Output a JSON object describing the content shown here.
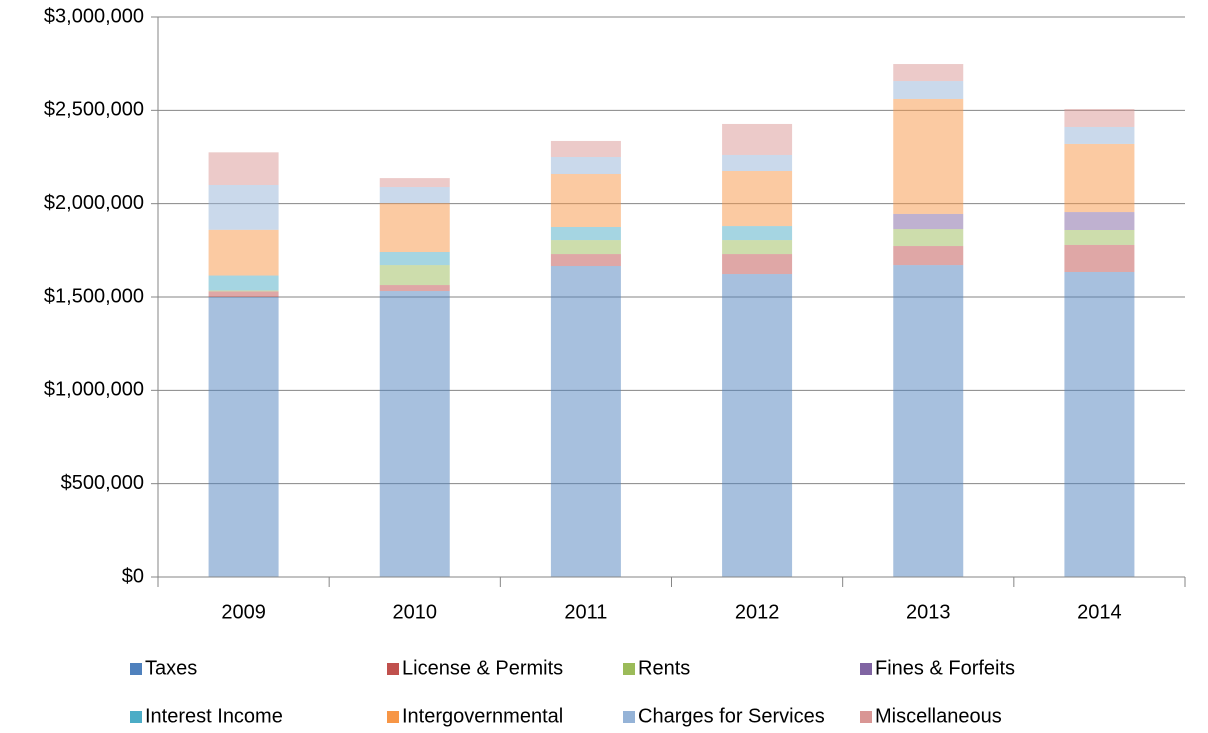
{
  "chart_data": {
    "type": "stacked_bar",
    "categories": [
      "2009",
      "2010",
      "2011",
      "2012",
      "2013",
      "2014"
    ],
    "series": [
      {
        "name": "Taxes",
        "color": "#4f81bd",
        "values": [
          1500000,
          1532000,
          1666000,
          1623000,
          1671000,
          1634000
        ]
      },
      {
        "name": "License & Permits",
        "color": "#c0504d",
        "values": [
          30000,
          32000,
          64000,
          107000,
          102000,
          145000
        ]
      },
      {
        "name": "Rents",
        "color": "#9bbb59",
        "values": [
          5000,
          107000,
          75000,
          75000,
          91000,
          80000
        ]
      },
      {
        "name": "Fines & Forfeits",
        "color": "#8064a2",
        "values": [
          0,
          0,
          0,
          0,
          81000,
          96000
        ]
      },
      {
        "name": "Interest Income",
        "color": "#4bacc6",
        "values": [
          80000,
          70000,
          70000,
          75000,
          0,
          0
        ]
      },
      {
        "name": "Intergovernmental",
        "color": "#f79646",
        "values": [
          245000,
          262000,
          284000,
          295000,
          616000,
          365000
        ]
      },
      {
        "name": "Charges for Services",
        "color": "#95b3d7",
        "values": [
          240000,
          86000,
          91000,
          86000,
          96000,
          91000
        ]
      },
      {
        "name": "Miscellaneous",
        "color": "#d99694",
        "values": [
          175000,
          48000,
          86000,
          166000,
          91000,
          96000
        ]
      }
    ],
    "ylim": [
      0,
      3000000
    ],
    "yticks": [
      {
        "value": 0,
        "label": "$0"
      },
      {
        "value": 500000,
        "label": "$500,000"
      },
      {
        "value": 1000000,
        "label": "$1,000,000"
      },
      {
        "value": 1500000,
        "label": "$1,500,000"
      },
      {
        "value": 2000000,
        "label": "$2,000,000"
      },
      {
        "value": 2500000,
        "label": "$2,500,000"
      },
      {
        "value": 3000000,
        "label": "$3,000,000"
      }
    ],
    "grid": true,
    "legend": "bottom"
  }
}
